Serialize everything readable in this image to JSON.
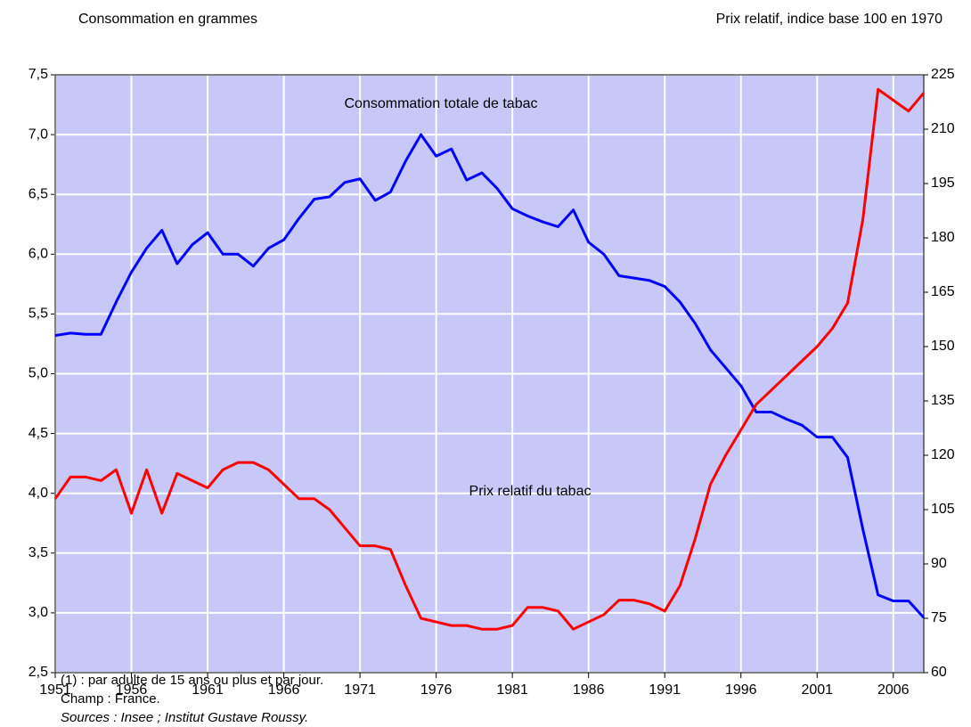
{
  "chart_data": {
    "type": "line",
    "y_axis_label": "Consommation en grammes",
    "y2_axis_label": "Prix relatif, indice base 100 en 1970",
    "annotations": [
      "Consommation totale de tabac",
      "Prix relatif du tabac"
    ],
    "notes": [
      "(1) : par adulte de 15 ans ou plus et par jour.",
      "Champ : France.",
      "Sources : Insee ; Institut Gustave Roussy."
    ],
    "x": [
      1951,
      1952,
      1953,
      1954,
      1955,
      1956,
      1957,
      1958,
      1959,
      1960,
      1961,
      1962,
      1963,
      1964,
      1965,
      1966,
      1967,
      1968,
      1969,
      1970,
      1971,
      1972,
      1973,
      1974,
      1975,
      1976,
      1977,
      1978,
      1979,
      1980,
      1981,
      1982,
      1983,
      1984,
      1985,
      1986,
      1987,
      1988,
      1989,
      1990,
      1991,
      1992,
      1993,
      1994,
      1995,
      1996,
      1997,
      1998,
      1999,
      2000,
      2001,
      2002,
      2003,
      2004,
      2005,
      2006,
      2007,
      2008
    ],
    "series": [
      {
        "name": "Consommation totale de tabac",
        "color": "#0000ff",
        "axis": "y",
        "values": [
          5.32,
          5.34,
          5.33,
          5.33,
          5.6,
          5.85,
          6.05,
          6.2,
          5.92,
          6.08,
          6.18,
          6.0,
          6.0,
          5.9,
          6.05,
          6.12,
          6.3,
          6.46,
          6.48,
          6.6,
          6.63,
          6.45,
          6.52,
          6.78,
          7.0,
          6.82,
          6.88,
          6.62,
          6.68,
          6.55,
          6.38,
          6.32,
          6.27,
          6.23,
          6.37,
          6.1,
          6.0,
          5.82,
          5.8,
          5.78,
          5.73,
          5.6,
          5.42,
          5.2,
          5.05,
          4.9,
          4.68,
          4.68,
          4.62,
          4.57,
          4.47,
          4.47,
          4.3,
          3.7,
          3.15,
          3.1,
          3.1,
          2.96
        ]
      },
      {
        "name": "Prix relatif du tabac",
        "color": "#ff0000",
        "axis": "y2",
        "values": [
          108,
          114,
          114,
          113,
          116,
          104,
          116,
          104,
          115,
          113,
          111,
          116,
          118,
          118,
          116,
          112,
          108,
          108,
          105,
          100,
          95,
          95,
          94,
          84,
          75,
          74,
          73,
          73,
          72,
          72,
          73,
          78,
          78,
          77,
          72,
          74,
          76,
          80,
          80,
          79,
          77,
          84,
          97,
          112,
          120,
          127,
          134,
          138,
          142,
          146,
          150,
          155,
          162,
          185,
          221,
          218,
          215,
          220
        ]
      }
    ],
    "xlim": [
      1951,
      2008
    ],
    "xticks": [
      1951,
      1956,
      1961,
      1966,
      1971,
      1976,
      1981,
      1986,
      1991,
      1996,
      2001,
      2006
    ],
    "ylim": [
      2.5,
      7.5
    ],
    "yticks": [
      {
        "value": 2.5,
        "label": "2,5"
      },
      {
        "value": 3,
        "label": "3,0"
      },
      {
        "value": 3.5,
        "label": "3,5"
      },
      {
        "value": 4,
        "label": "4,0"
      },
      {
        "value": 4.5,
        "label": "4,5"
      },
      {
        "value": 5,
        "label": "5,0"
      },
      {
        "value": 5.5,
        "label": "5,5"
      },
      {
        "value": 6,
        "label": "6,0"
      },
      {
        "value": 6.5,
        "label": "6,5"
      },
      {
        "value": 7,
        "label": "7,0"
      },
      {
        "value": 7.5,
        "label": "7,5"
      }
    ],
    "y2lim": [
      60,
      225
    ],
    "y2ticks": [
      60,
      75,
      90,
      105,
      120,
      135,
      150,
      165,
      180,
      195,
      210,
      225
    ],
    "grid": true,
    "plot_background": "#c8c8f8"
  }
}
